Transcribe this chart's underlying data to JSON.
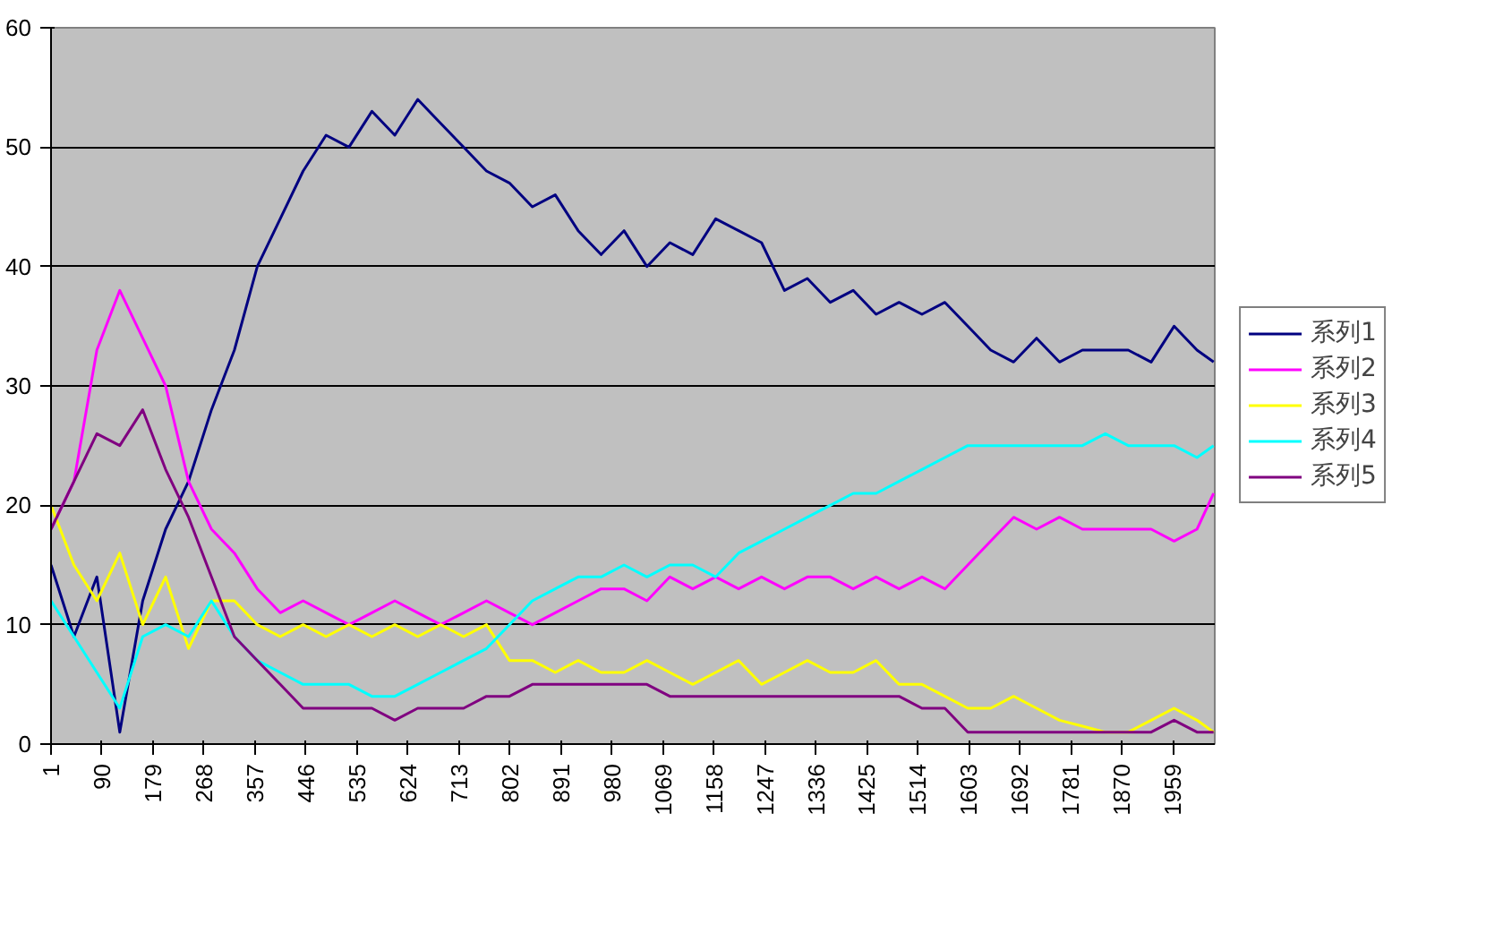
{
  "chart_data": {
    "type": "line",
    "x": [
      1,
      41,
      81,
      121,
      161,
      201,
      241,
      281,
      321,
      361,
      401,
      441,
      481,
      521,
      561,
      601,
      641,
      681,
      721,
      761,
      801,
      841,
      881,
      921,
      961,
      1001,
      1041,
      1081,
      1121,
      1161,
      1201,
      1241,
      1281,
      1321,
      1361,
      1401,
      1441,
      1481,
      1521,
      1561,
      1601,
      1641,
      1681,
      1721,
      1761,
      1801,
      1841,
      1881,
      1921,
      1961,
      2001,
      2030
    ],
    "series": [
      {
        "name": "系列1",
        "color": "#000080",
        "values": [
          15,
          9,
          14,
          1,
          12,
          18,
          22,
          28,
          33,
          40,
          44,
          48,
          51,
          50,
          53,
          51,
          54,
          52,
          50,
          48,
          47,
          45,
          46,
          43,
          41,
          43,
          40,
          42,
          41,
          44,
          43,
          42,
          38,
          39,
          37,
          38,
          36,
          37,
          36,
          37,
          35,
          33,
          32,
          34,
          32,
          33,
          33,
          33,
          32,
          35,
          33,
          32
        ]
      },
      {
        "name": "系列2",
        "color": "#ff00ff",
        "values": [
          18,
          22,
          33,
          38,
          34,
          30,
          22,
          18,
          16,
          13,
          11,
          12,
          11,
          10,
          11,
          12,
          11,
          10,
          11,
          12,
          11,
          10,
          11,
          12,
          13,
          13,
          12,
          14,
          13,
          14,
          13,
          14,
          13,
          14,
          14,
          13,
          14,
          13,
          14,
          13,
          15,
          17,
          19,
          18,
          19,
          18,
          18,
          18,
          18,
          17,
          18,
          21
        ]
      },
      {
        "name": "系列3",
        "color": "#ffff00",
        "values": [
          20,
          15,
          12,
          16,
          10,
          14,
          8,
          12,
          12,
          10,
          9,
          10,
          9,
          10,
          9,
          10,
          9,
          10,
          9,
          10,
          7,
          7,
          6,
          7,
          6,
          6,
          7,
          6,
          5,
          6,
          7,
          5,
          6,
          7,
          6,
          6,
          7,
          5,
          5,
          4,
          3,
          3,
          4,
          3,
          2,
          1.5,
          1,
          1,
          2,
          3,
          2,
          1
        ]
      },
      {
        "name": "系列4",
        "color": "#00ffff",
        "values": [
          12,
          9,
          6,
          3,
          9,
          10,
          9,
          12,
          9,
          7,
          6,
          5,
          5,
          5,
          4,
          4,
          5,
          6,
          7,
          8,
          10,
          12,
          13,
          14,
          14,
          15,
          14,
          15,
          15,
          14,
          16,
          17,
          18,
          19,
          20,
          21,
          21,
          22,
          23,
          24,
          25,
          25,
          25,
          25,
          25,
          25,
          26,
          25,
          25,
          25,
          24,
          25
        ]
      },
      {
        "name": "系列5",
        "color": "#800080",
        "values": [
          18,
          22,
          26,
          25,
          28,
          23,
          19,
          14,
          9,
          7,
          5,
          3,
          3,
          3,
          3,
          2,
          3,
          3,
          3,
          4,
          4,
          5,
          5,
          5,
          5,
          5,
          5,
          4,
          4,
          4,
          4,
          4,
          4,
          4,
          4,
          4,
          4,
          4,
          3,
          3,
          1,
          1,
          1,
          1,
          1,
          1,
          1,
          1,
          1,
          2,
          1,
          1
        ]
      }
    ],
    "xlim": [
      1,
      2032
    ],
    "xticks": [
      1,
      90,
      179,
      268,
      357,
      446,
      535,
      624,
      713,
      802,
      891,
      980,
      1069,
      1158,
      1247,
      1336,
      1425,
      1514,
      1603,
      1692,
      1781,
      1870,
      1959
    ],
    "ylim": [
      0,
      60
    ],
    "yticks": [
      0,
      10,
      20,
      30,
      40,
      50,
      60
    ],
    "grid": "y",
    "legend": "right",
    "line_style": "solid",
    "marker": "none"
  }
}
